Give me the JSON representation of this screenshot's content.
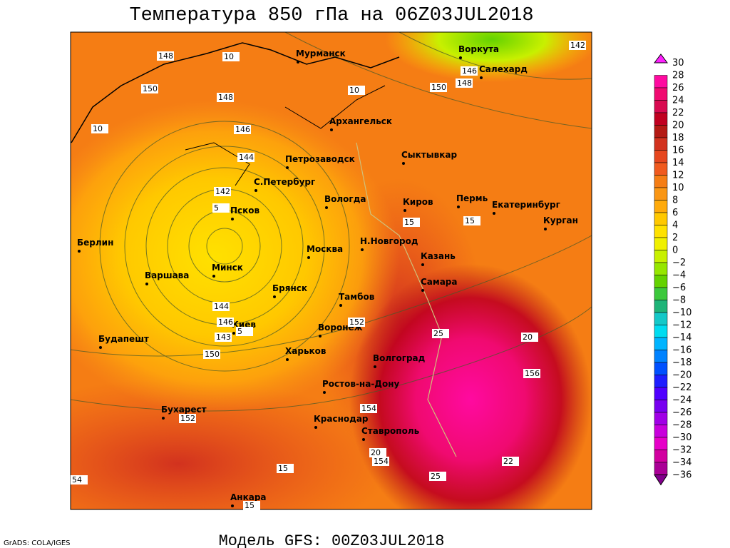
{
  "title": "Температура 850 гПа на 06Z03JUL2018",
  "footer": "Модель GFS: 00Z03JUL2018",
  "credit": "GrADS: COLA/IGES",
  "colorbar": [
    {
      "label": "30",
      "color": "#ff20ff"
    },
    {
      "label": "28",
      "color": "#ff0aa0"
    },
    {
      "label": "26",
      "color": "#f00a70"
    },
    {
      "label": "24",
      "color": "#d80a50"
    },
    {
      "label": "22",
      "color": "#c00020"
    },
    {
      "label": "20",
      "color": "#b41a14"
    },
    {
      "label": "18",
      "color": "#d2321e"
    },
    {
      "label": "16",
      "color": "#e6461e"
    },
    {
      "label": "14",
      "color": "#f05a1e"
    },
    {
      "label": "12",
      "color": "#f57d14"
    },
    {
      "label": "10",
      "color": "#fa9614"
    },
    {
      "label": "8",
      "color": "#ffaa0a"
    },
    {
      "label": "6",
      "color": "#ffc800"
    },
    {
      "label": "4",
      "color": "#ffe100"
    },
    {
      "label": "2",
      "color": "#f0f000"
    },
    {
      "label": "0",
      "color": "#c8f000"
    },
    {
      "label": "−2",
      "color": "#96e600"
    },
    {
      "label": "−4",
      "color": "#64d200"
    },
    {
      "label": "−6",
      "color": "#3cc83c"
    },
    {
      "label": "−8",
      "color": "#1eb478"
    },
    {
      "label": "−10",
      "color": "#14c8c8"
    },
    {
      "label": "−12",
      "color": "#00dcf0"
    },
    {
      "label": "−14",
      "color": "#00b4ff"
    },
    {
      "label": "−16",
      "color": "#0082ff"
    },
    {
      "label": "−18",
      "color": "#0050ff"
    },
    {
      "label": "−20",
      "color": "#1e1eff"
    },
    {
      "label": "−22",
      "color": "#5000ff"
    },
    {
      "label": "−24",
      "color": "#7800f0"
    },
    {
      "label": "−26",
      "color": "#a000e6"
    },
    {
      "label": "−28",
      "color": "#c800dc"
    },
    {
      "label": "−30",
      "color": "#e600c8"
    },
    {
      "label": "−32",
      "color": "#d200a0"
    },
    {
      "label": "−34",
      "color": "#aa0096"
    },
    {
      "label": "−36",
      "color": "#82008c"
    }
  ],
  "cities": [
    "Мурманск",
    "Воркута",
    "Салехард",
    "Архангельск",
    "Сыктывкар",
    "Петрозаводск",
    "С.Петербург",
    "Вологда",
    "Киров",
    "Пермь",
    "Екатеринбург",
    "Курган",
    "Псков",
    "Берлин",
    "Н.Новгород",
    "Москва",
    "Казань",
    "Минск",
    "Варшава",
    "Самара",
    "Брянск",
    "Тамбов",
    "Киев",
    "Воронеж",
    "Будапешт",
    "Харьков",
    "Волгоград",
    "Ростов-на-Дону",
    "Бухарест",
    "Краснодар",
    "Ставрополь",
    "Анкара"
  ],
  "contour_labels": [
    "148",
    "150",
    "148",
    "146",
    "144",
    "142",
    "144",
    "146",
    "143",
    "150",
    "152",
    "152",
    "154",
    "154",
    "156",
    "148",
    "146",
    "142",
    "150",
    "10",
    "10",
    "10",
    "5",
    "5",
    "15",
    "15",
    "15",
    "15",
    "20",
    "20",
    "25",
    "25",
    "22",
    "54"
  ]
}
